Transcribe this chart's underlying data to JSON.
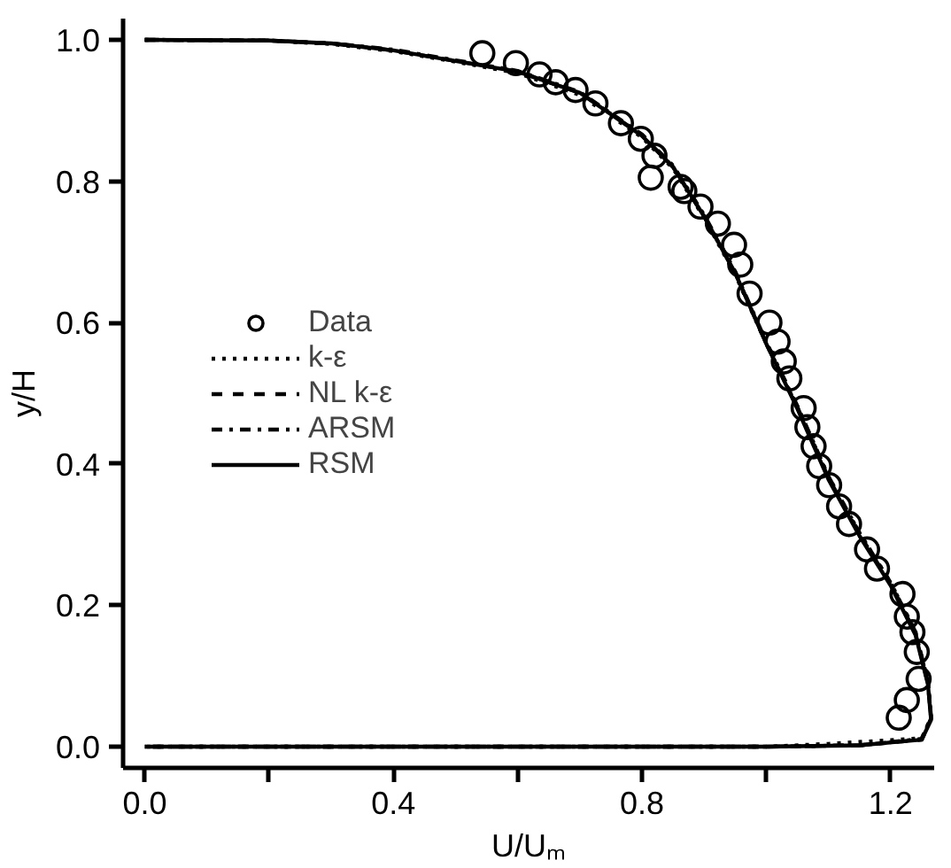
{
  "chart_data": {
    "type": "line",
    "xlabel": "U/Uₘ",
    "ylabel": "y/H",
    "xlim": [
      -0.035,
      1.27
    ],
    "ylim": [
      -0.03,
      1.03
    ],
    "xticks": [
      {
        "value": 0,
        "label": "0.0"
      },
      {
        "value": 0.2,
        "label": null
      },
      0.4,
      {
        "value": 0.6,
        "label": null
      },
      0.8,
      {
        "value": 1.0,
        "label": null
      },
      1.2
    ],
    "yticks": [
      {
        "value": 0,
        "label": "0.0"
      },
      0.2,
      0.4,
      0.6,
      0.8,
      {
        "value": 1,
        "label": "1.0"
      }
    ],
    "grid": false,
    "legend": "left",
    "series": [
      {
        "name": "Data",
        "type": "scatter",
        "marker": "circle",
        "color": "#000000",
        "x": [
          0.543,
          0.597,
          0.635,
          0.661,
          0.693,
          0.725,
          0.766,
          0.798,
          0.82,
          0.814,
          0.862,
          0.868,
          0.894,
          0.922,
          0.948,
          0.958,
          0.973,
          1.005,
          1.018,
          1.028,
          1.037,
          1.06,
          1.066,
          1.076,
          1.085,
          1.101,
          1.117,
          1.133,
          1.162,
          1.178,
          1.219,
          1.226,
          1.235,
          1.242,
          1.245,
          1.226,
          1.213
        ],
        "values": [
          0.981,
          0.967,
          0.951,
          0.94,
          0.929,
          0.91,
          0.882,
          0.86,
          0.836,
          0.805,
          0.792,
          0.786,
          0.764,
          0.74,
          0.71,
          0.682,
          0.641,
          0.6,
          0.573,
          0.545,
          0.521,
          0.479,
          0.452,
          0.425,
          0.397,
          0.37,
          0.34,
          0.315,
          0.279,
          0.252,
          0.216,
          0.184,
          0.162,
          0.134,
          0.096,
          0.066,
          0.041
        ]
      },
      {
        "name": "k-ε",
        "line_style": "dotted",
        "color": "#000000",
        "x": [
          0,
          0.2,
          0.3,
          0.4,
          0.5,
          0.6,
          0.7,
          0.8,
          0.85,
          0.9,
          0.95,
          1.0,
          1.05,
          1.1,
          1.15,
          1.2,
          1.24,
          1.26,
          1.265,
          1.25,
          1.1,
          1.0,
          0
        ],
        "values": [
          1.0,
          0.999,
          0.994,
          0.984,
          0.969,
          0.953,
          0.922,
          0.862,
          0.818,
          0.748,
          0.668,
          0.57,
          0.48,
          0.382,
          0.302,
          0.232,
          0.162,
          0.09,
          0.04,
          0.012,
          0.004,
          0.0,
          0.0
        ]
      },
      {
        "name": "NL k-ε",
        "line_style": "dashed",
        "color": "#000000",
        "x": [
          0,
          0.2,
          0.3,
          0.4,
          0.5,
          0.6,
          0.7,
          0.8,
          0.85,
          0.9,
          0.95,
          1.0,
          1.05,
          1.1,
          1.15,
          1.2,
          1.24,
          1.26,
          1.265,
          1.25,
          1.15,
          1.0,
          0
        ],
        "values": [
          1.0,
          0.999,
          0.995,
          0.985,
          0.97,
          0.955,
          0.925,
          0.865,
          0.82,
          0.75,
          0.67,
          0.57,
          0.48,
          0.38,
          0.3,
          0.23,
          0.16,
          0.09,
          0.04,
          0.01,
          0.002,
          0.0,
          0.0
        ]
      },
      {
        "name": "ARSM",
        "line_style": "dashdot",
        "color": "#000000",
        "x": [
          0,
          0.2,
          0.3,
          0.4,
          0.5,
          0.6,
          0.7,
          0.8,
          0.85,
          0.9,
          0.95,
          1.0,
          1.05,
          1.1,
          1.15,
          1.2,
          1.24,
          1.26,
          1.265,
          1.25,
          1.15,
          1.0,
          0
        ],
        "values": [
          1.0,
          0.999,
          0.995,
          0.986,
          0.971,
          0.956,
          0.926,
          0.866,
          0.822,
          0.752,
          0.672,
          0.572,
          0.482,
          0.382,
          0.302,
          0.232,
          0.162,
          0.092,
          0.042,
          0.011,
          0.002,
          0.0,
          0.0
        ]
      },
      {
        "name": "RSM",
        "line_style": "solid",
        "color": "#000000",
        "x": [
          0,
          0.2,
          0.3,
          0.4,
          0.5,
          0.6,
          0.7,
          0.8,
          0.85,
          0.9,
          0.95,
          1.0,
          1.05,
          1.1,
          1.15,
          1.2,
          1.24,
          1.26,
          1.265,
          1.25,
          1.15,
          1.0,
          0
        ],
        "values": [
          1.0,
          0.999,
          0.995,
          0.985,
          0.97,
          0.955,
          0.925,
          0.864,
          0.82,
          0.75,
          0.67,
          0.57,
          0.478,
          0.378,
          0.298,
          0.228,
          0.158,
          0.088,
          0.038,
          0.01,
          0.002,
          0.0,
          0.0
        ]
      }
    ]
  }
}
